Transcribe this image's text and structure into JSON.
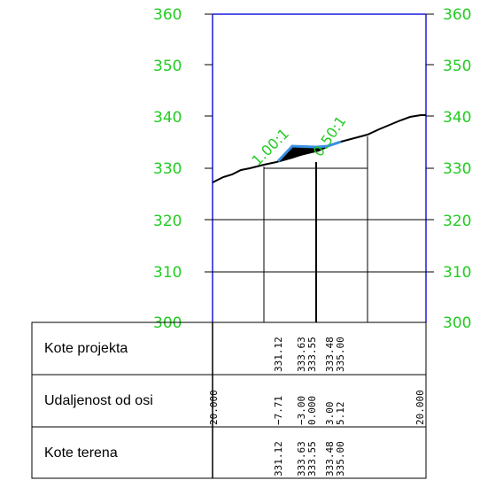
{
  "section": {
    "elevation_ticks": [
      "360",
      "350",
      "340",
      "330",
      "320",
      "310",
      "300"
    ],
    "slope_labels": {
      "left": "1.00:1",
      "right": "0.50:1"
    },
    "rows": [
      {
        "label": "Kote projekta",
        "values": [
          "331.12",
          "333.63",
          "333.55",
          "333.48",
          "335.00"
        ]
      },
      {
        "label": "Udaljenost od osi",
        "values": [
          "20.000",
          "−7.71",
          "−3.00",
          "0.000",
          "3.00",
          "5.12",
          "20.000"
        ]
      },
      {
        "label": "Kote terena",
        "values": [
          "331.12",
          "333.63",
          "333.55",
          "333.48",
          "335.00"
        ]
      }
    ],
    "colors": {
      "elevation_text": "#22cc22",
      "frame_lines": "#1a1adf",
      "design_profile": "#3a8fe0",
      "ground_line": "#000000"
    }
  }
}
